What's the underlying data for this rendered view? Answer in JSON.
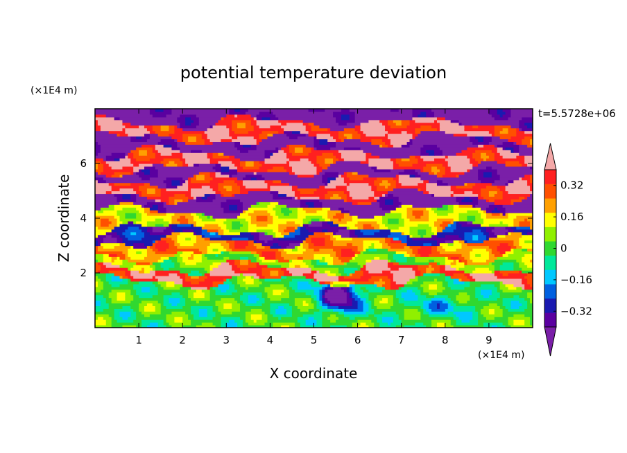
{
  "chart_data": {
    "type": "heatmap",
    "title": "potential temperature deviation",
    "xlabel": "X coordinate",
    "ylabel": "Z coordinate",
    "x_unit": "(×1E4 m)",
    "y_unit": "(×1E4 m)",
    "time_label": "t=5.5728e+06",
    "xlim": [
      0,
      10
    ],
    "ylim": [
      0,
      8
    ],
    "x_ticks": [
      1,
      2,
      3,
      4,
      5,
      6,
      7,
      8,
      9
    ],
    "y_ticks": [
      2,
      4,
      6
    ],
    "x_tick_labels": [
      "1",
      "2",
      "3",
      "4",
      "5",
      "6",
      "7",
      "8",
      "9"
    ],
    "y_tick_labels": [
      "2",
      "4",
      "6"
    ],
    "colorbar": {
      "levels": [
        -0.48,
        -0.4,
        -0.32,
        -0.24,
        -0.16,
        -0.08,
        0,
        0.08,
        0.16,
        0.24,
        0.32,
        0.4,
        0.48
      ],
      "tick_values": [
        0.32,
        0.16,
        0,
        -0.16,
        -0.32
      ],
      "tick_labels": [
        "0.32",
        "0.16",
        "0",
        "−0.16",
        "−0.32"
      ],
      "colors": [
        "#7a1fa8",
        "#5a00a0",
        "#1a1ab0",
        "#0060e0",
        "#00c8ff",
        "#00e89a",
        "#30d830",
        "#90f000",
        "#ffff00",
        "#ffa000",
        "#ff5000",
        "#ff2020",
        "#f4a8a8"
      ],
      "extend": "both"
    },
    "layers": [
      {
        "z": [
          0,
          1.7
        ],
        "level": 0.04,
        "description_color": "#90f000"
      },
      {
        "z": [
          1.7,
          2.2
        ],
        "level": 0.45
      },
      {
        "z": [
          2.2,
          2.6
        ],
        "level": 0.1
      },
      {
        "z": [
          2.6,
          3.2
        ],
        "level": 0.3
      },
      {
        "z": [
          3.2,
          3.6
        ],
        "level": -0.3
      },
      {
        "z": [
          3.6,
          4.3
        ],
        "level": 0.2
      },
      {
        "z": [
          4.3,
          4.8
        ],
        "level": -0.45
      },
      {
        "z": [
          4.8,
          5.4
        ],
        "level": 0.45
      },
      {
        "z": [
          5.4,
          5.8
        ],
        "level": -0.45
      },
      {
        "z": [
          5.8,
          6.4
        ],
        "level": 0.45
      },
      {
        "z": [
          6.4,
          6.9
        ],
        "level": -0.45
      },
      {
        "z": [
          6.9,
          7.5
        ],
        "level": 0.45
      },
      {
        "z": [
          7.5,
          8.0
        ],
        "level": -0.45
      }
    ]
  }
}
